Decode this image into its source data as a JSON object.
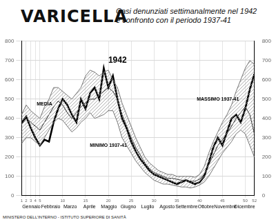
{
  "chart_data": {
    "type": "line",
    "title": "VARICELLA",
    "subtitle": [
      "Casi denunziati settimanalmente nel 1942",
      "e confronto con il periodo 1937-41"
    ],
    "footer": "MINISTERO DELL'INTERNO - ISTITUTO SUPERIORE DI SANITÀ",
    "x": [
      1,
      2,
      3,
      4,
      5,
      6,
      7,
      8,
      9,
      10,
      11,
      12,
      13,
      14,
      15,
      16,
      17,
      18,
      19,
      20,
      21,
      22,
      23,
      24,
      25,
      26,
      27,
      28,
      29,
      30,
      31,
      32,
      33,
      34,
      35,
      36,
      37,
      38,
      39,
      40,
      41,
      42,
      43,
      44,
      45,
      46,
      47,
      48,
      49,
      50,
      51,
      52
    ],
    "xlim": [
      1,
      52
    ],
    "xticks": [
      1,
      2,
      3,
      4,
      5,
      10,
      15,
      20,
      25,
      30,
      35,
      40,
      45,
      50,
      52
    ],
    "months": [
      "Gennaio",
      "Febbraio",
      "Marzo",
      "Aprile",
      "Maggio",
      "Giugno",
      "Luglio",
      "Agosto",
      "Settembre",
      "Ottobre",
      "Novembre",
      "Dicembre"
    ],
    "series": [
      {
        "name": "MASSIMO 1937-41",
        "color": "#777777",
        "line_style": "solid",
        "values": [
          420,
          470,
          440,
          420,
          400,
          460,
          500,
          560,
          560,
          540,
          520,
          500,
          530,
          560,
          620,
          650,
          640,
          620,
          640,
          650,
          600,
          560,
          480,
          420,
          360,
          300,
          250,
          200,
          170,
          150,
          130,
          120,
          110,
          110,
          100,
          100,
          100,
          100,
          95,
          110,
          150,
          220,
          280,
          330,
          380,
          420,
          470,
          540,
          600,
          660,
          700,
          680
        ]
      },
      {
        "name": "MINIMO 1937-41",
        "color": "#777777",
        "line_style": "solid",
        "type": "area",
        "values": [
          270,
          300,
          300,
          280,
          260,
          300,
          340,
          380,
          400,
          390,
          360,
          330,
          350,
          380,
          400,
          430,
          400,
          410,
          420,
          440,
          440,
          380,
          300,
          260,
          220,
          180,
          150,
          120,
          100,
          80,
          70,
          60,
          60,
          55,
          50,
          45,
          45,
          40,
          45,
          55,
          70,
          100,
          140,
          180,
          220,
          250,
          280,
          320,
          340,
          320,
          260,
          200
        ]
      },
      {
        "name": "MEDIA",
        "color": "#222222",
        "line_style": "solid",
        "values": [
          370,
          400,
          380,
          360,
          340,
          380,
          420,
          460,
          490,
          470,
          430,
          400,
          430,
          460,
          480,
          500,
          500,
          520,
          540,
          560,
          540,
          500,
          420,
          360,
          300,
          250,
          210,
          170,
          140,
          120,
          110,
          100,
          90,
          90,
          85,
          80,
          80,
          75,
          75,
          85,
          110,
          160,
          210,
          260,
          290,
          320,
          360,
          400,
          430,
          460,
          420,
          320
        ]
      },
      {
        "name": "1942",
        "color": "#000000",
        "line_style": "thick",
        "values": [
          380,
          410,
          350,
          300,
          260,
          290,
          280,
          380,
          450,
          500,
          470,
          420,
          380,
          500,
          450,
          530,
          560,
          500,
          660,
          560,
          620,
          500,
          400,
          350,
          280,
          230,
          190,
          160,
          130,
          110,
          100,
          90,
          80,
          70,
          60,
          70,
          80,
          70,
          60,
          70,
          100,
          170,
          250,
          300,
          260,
          330,
          400,
          420,
          380,
          450,
          550,
          630
        ]
      }
    ],
    "annotations": [
      {
        "text": "MEDIA",
        "x": 6,
        "y": 475
      },
      {
        "text": "1942",
        "x": 22,
        "y": 700
      },
      {
        "text": "MASSIMO 1937-41",
        "x": 44,
        "y": 500
      },
      {
        "text": "MINIMO 1937-41",
        "x": 20,
        "y": 260
      }
    ],
    "ylim": [
      0,
      800
    ],
    "yticks": [
      0,
      100,
      200,
      300,
      400,
      500,
      600,
      700,
      800
    ],
    "y2lim": [
      0,
      800
    ],
    "y2ticks": [
      0,
      100,
      200,
      300,
      400,
      500,
      600,
      700,
      800
    ],
    "grid": true
  }
}
